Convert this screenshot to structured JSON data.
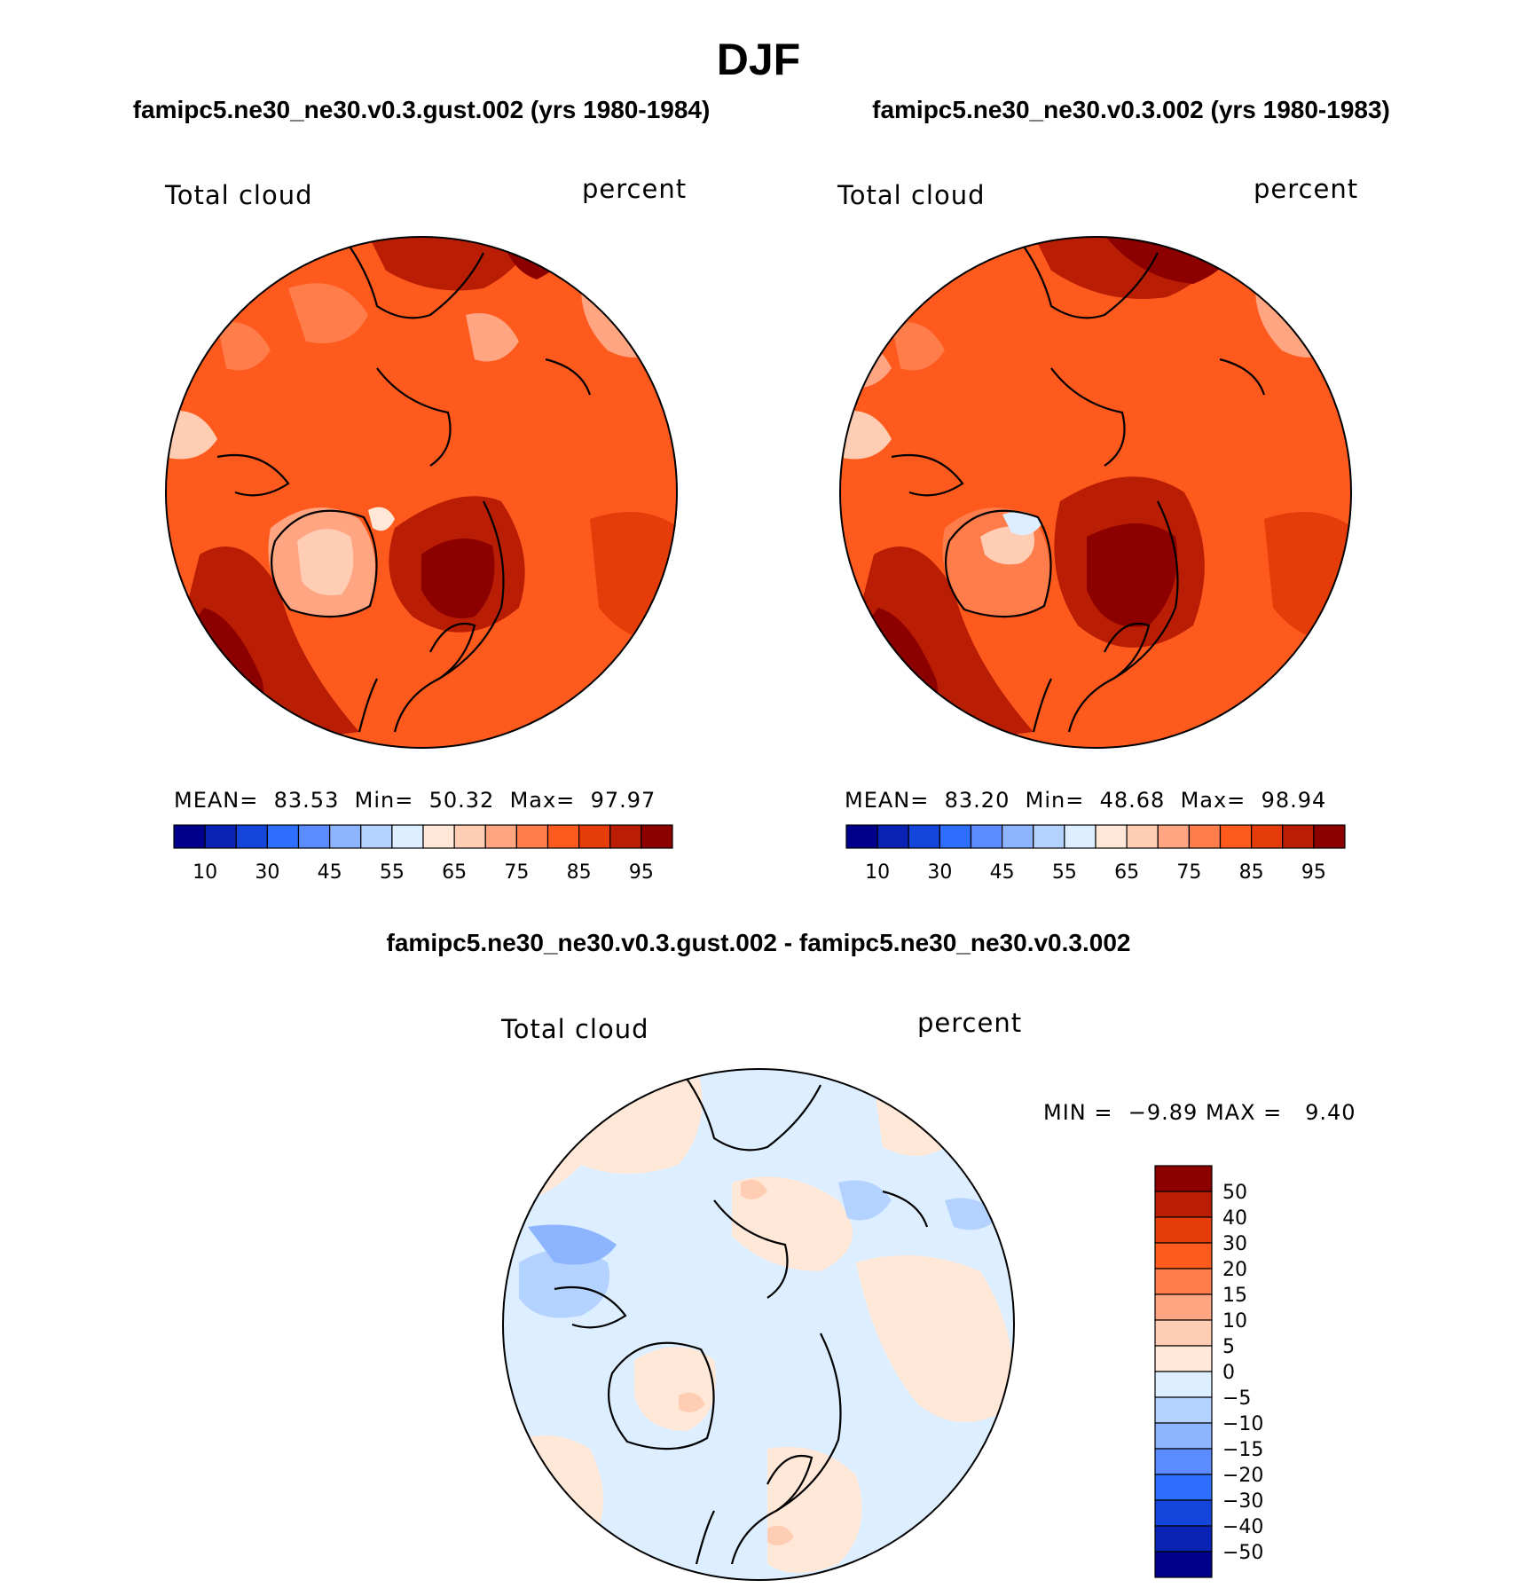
{
  "page_title": "DJF",
  "panels": [
    {
      "case_title": "famipc5.ne30_ne30.v0.3.gust.002 (yrs 1980-1984)",
      "var_label": "Total cloud",
      "units_label": "percent",
      "stats": {
        "mean_label": "MEAN=",
        "mean": "83.53",
        "min_label": "Min=",
        "min": "50.32",
        "max_label": "Max=",
        "max": "97.97"
      }
    },
    {
      "case_title": "famipc5.ne30_ne30.v0.3.002 (yrs 1980-1983)",
      "var_label": "Total cloud",
      "units_label": "percent",
      "stats": {
        "mean_label": "MEAN=",
        "mean": "83.20",
        "min_label": "Min=",
        "min": "48.68",
        "max_label": "Max=",
        "max": "98.94"
      }
    }
  ],
  "diff_panel": {
    "title": "famipc5.ne30_ne30.v0.3.gust.002 - famipc5.ne30_ne30.v0.3.002",
    "var_label": "Total cloud",
    "units_label": "percent",
    "stats": {
      "min_label": "MIN =",
      "min": "−9.89",
      "max_label": "MAX =",
      "max": "9.40"
    }
  },
  "colorbar_abs": {
    "colors": [
      "#00008c",
      "#0a23b4",
      "#1446dc",
      "#2d6eff",
      "#5a8cff",
      "#8cb4ff",
      "#b4d2ff",
      "#dceeff",
      "#ffe8d8",
      "#ffcdb4",
      "#ffa582",
      "#ff7d4b",
      "#ff5a1e",
      "#e63c0a",
      "#b91e05",
      "#8c0000"
    ],
    "labels": [
      "10",
      "30",
      "45",
      "55",
      "65",
      "75",
      "85",
      "95"
    ]
  },
  "colorbar_diff": {
    "colors": [
      "#8c0000",
      "#b91e05",
      "#e63c0a",
      "#ff5a1e",
      "#ff7d4b",
      "#ffa582",
      "#ffcdb4",
      "#ffe8d8",
      "#dceeff",
      "#b4d2ff",
      "#8cb4ff",
      "#5a8cff",
      "#2d6eff",
      "#1446dc",
      "#0a23b4",
      "#00008c"
    ],
    "labels": [
      "50",
      "40",
      "30",
      "20",
      "15",
      "10",
      "5",
      "0",
      "−5",
      "−10",
      "−15",
      "−20",
      "−30",
      "−40",
      "−50"
    ]
  }
}
